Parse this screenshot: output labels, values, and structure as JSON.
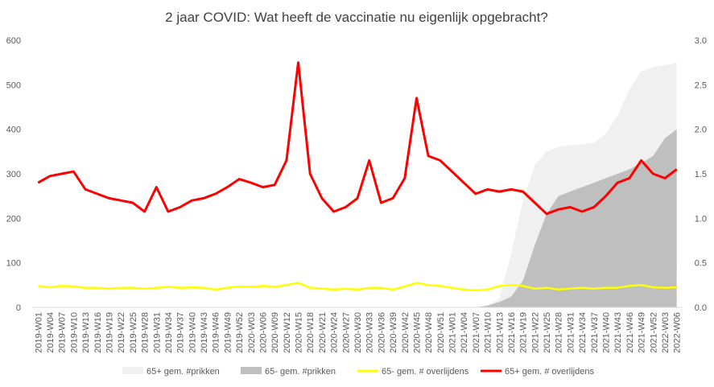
{
  "chart_data": {
    "type": "line",
    "title": "2 jaar COVID: Wat heeft de vaccinatie nu eigenlijk opgebracht?",
    "xlabel": "",
    "ylabel": "",
    "ylim": [
      0,
      600
    ],
    "y2lim": [
      0,
      3.0
    ],
    "y_ticks": [
      "0",
      "100",
      "200",
      "300",
      "400",
      "500",
      "600"
    ],
    "y2_ticks": [
      "0.0",
      "0.5",
      "1.0",
      "1.5",
      "2.0",
      "2.5",
      "3.0"
    ],
    "grid": false,
    "legend_position": "bottom",
    "x_labels": [
      "2019-W01",
      "2019-W04",
      "2019-W07",
      "2019-W10",
      "2019-W13",
      "2019-W16",
      "2019-W19",
      "2019-W22",
      "2019-W25",
      "2019-W28",
      "2019-W31",
      "2019-W34",
      "2019-W37",
      "2019-W40",
      "2019-W43",
      "2019-W46",
      "2019-W49",
      "2019-W52",
      "2020-W03",
      "2020-W06",
      "2020-W09",
      "2020-W12",
      "2020-W15",
      "2020-W18",
      "2020-W21",
      "2020-W24",
      "2020-W27",
      "2020-W30",
      "2020-W33",
      "2020-W36",
      "2020-W39",
      "2020-W42",
      "2020-W45",
      "2020-W48",
      "2020-W51",
      "2021-W01",
      "2021-W04",
      "2021-W07",
      "2021-W10",
      "2021-W13",
      "2021-W16",
      "2021-W19",
      "2021-W22",
      "2021-W25",
      "2021-W28",
      "2021-W31",
      "2021-W34",
      "2021-W37",
      "2021-W40",
      "2021-W43",
      "2021-W46",
      "2021-W49",
      "2021-W52",
      "2022-W03",
      "2022-W06"
    ],
    "series": [
      {
        "name": "65+ gem. #prikken",
        "kind": "area",
        "axis": "secondary",
        "color": "#f0f0f0",
        "values": [
          0,
          0,
          0,
          0,
          0,
          0,
          0,
          0,
          0,
          0,
          0,
          0,
          0,
          0,
          0,
          0,
          0,
          0,
          0,
          0,
          0,
          0,
          0,
          0,
          0,
          0,
          0,
          0,
          0,
          0,
          0,
          0,
          0,
          0,
          0,
          0,
          0,
          0,
          0.02,
          0.1,
          0.6,
          1.2,
          1.6,
          1.75,
          1.8,
          1.82,
          1.83,
          1.85,
          1.95,
          2.15,
          2.45,
          2.65,
          2.7,
          2.72,
          2.75
        ]
      },
      {
        "name": "65- gem. #prikken",
        "kind": "area",
        "axis": "secondary",
        "color": "#bfbfbf",
        "values": [
          0,
          0,
          0,
          0,
          0,
          0,
          0,
          0,
          0,
          0,
          0,
          0,
          0,
          0,
          0,
          0,
          0,
          0,
          0,
          0,
          0,
          0,
          0,
          0,
          0,
          0,
          0,
          0,
          0,
          0,
          0,
          0,
          0,
          0,
          0,
          0,
          0,
          0,
          0.02,
          0.06,
          0.12,
          0.3,
          0.7,
          1.05,
          1.25,
          1.3,
          1.35,
          1.4,
          1.45,
          1.5,
          1.55,
          1.62,
          1.7,
          1.9,
          2.0
        ]
      },
      {
        "name": "65- gem. # overlijdens",
        "kind": "line",
        "axis": "primary",
        "color": "#ffff00",
        "values": [
          48,
          45,
          48,
          47,
          44,
          44,
          42,
          44,
          44,
          42,
          44,
          46,
          44,
          45,
          44,
          40,
          44,
          47,
          46,
          48,
          46,
          50,
          55,
          44,
          42,
          40,
          42,
          40,
          44,
          44,
          40,
          47,
          55,
          50,
          48,
          44,
          40,
          38,
          40,
          48,
          50,
          48,
          42,
          44,
          40,
          42,
          44,
          42,
          44,
          44,
          48,
          50,
          45,
          44,
          45
        ]
      },
      {
        "name": "65+ gem. # overlijdens",
        "kind": "line",
        "axis": "primary",
        "color": "#ff0000",
        "values": [
          280,
          295,
          300,
          305,
          265,
          255,
          245,
          240,
          235,
          215,
          270,
          215,
          225,
          240,
          245,
          255,
          270,
          288,
          280,
          270,
          275,
          330,
          550,
          300,
          245,
          215,
          225,
          245,
          330,
          235,
          245,
          290,
          470,
          340,
          330,
          305,
          280,
          255,
          265,
          260,
          265,
          260,
          235,
          210,
          220,
          225,
          215,
          225,
          250,
          280,
          290,
          330,
          300,
          290,
          310
        ]
      }
    ]
  },
  "legend": {
    "items": [
      "65+ gem. #prikken",
      "65- gem. #prikken",
      "65- gem. # overlijdens",
      "65+ gem. # overlijdens"
    ]
  }
}
